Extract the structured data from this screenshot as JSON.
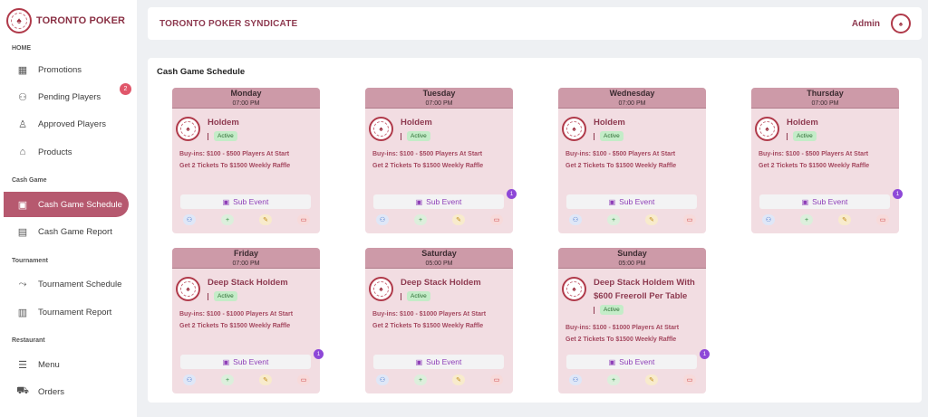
{
  "brand": {
    "title": "TORONTO POKER"
  },
  "sidebar": {
    "sections": [
      "HOME",
      "Cash Game",
      "Tournament",
      "Restaurant"
    ],
    "items": [
      {
        "label": "Promotions",
        "icon": "grid-icon"
      },
      {
        "label": "Pending Players",
        "icon": "users-icon",
        "badge": "2"
      },
      {
        "label": "Approved Players",
        "icon": "user-check-icon"
      },
      {
        "label": "Products",
        "icon": "store-icon"
      },
      {
        "label": "Cash Game Schedule",
        "icon": "calendar-icon",
        "active": true
      },
      {
        "label": "Cash Game Report",
        "icon": "report-icon"
      },
      {
        "label": "Tournament Schedule",
        "icon": "route-icon"
      },
      {
        "label": "Tournament Report",
        "icon": "clipboard-icon"
      },
      {
        "label": "Menu",
        "icon": "menu-icon"
      },
      {
        "label": "Orders",
        "icon": "cart-icon"
      }
    ]
  },
  "header": {
    "title": "TORONTO POKER SYNDICATE",
    "user": "Admin"
  },
  "main": {
    "title": "Cash Game Schedule"
  },
  "cards": [
    {
      "day": "Monday",
      "time": "07:00 PM",
      "game": "Holdem",
      "status": "Active",
      "desc1": "Buy-ins: $100 - $500 Players At Start",
      "desc2": "Get 2 Tickets To $1500 Weekly Raffle",
      "sub": "Sub Event",
      "count": ""
    },
    {
      "day": "Tuesday",
      "time": "07:00 PM",
      "game": "Holdem",
      "status": "Active",
      "desc1": "Buy-ins: $100 - $500 Players At Start",
      "desc2": "Get 2 Tickets To $1500 Weekly Raffle",
      "sub": "Sub Event",
      "count": "1"
    },
    {
      "day": "Wednesday",
      "time": "07:00 PM",
      "game": "Holdem",
      "status": "Active",
      "desc1": "Buy-ins: $100 - $500 Players At Start",
      "desc2": "Get 2 Tickets To $1500 Weekly Raffle",
      "sub": "Sub Event",
      "count": ""
    },
    {
      "day": "Thursday",
      "time": "07:00 PM",
      "game": "Holdem",
      "status": "Active",
      "desc1": "Buy-ins: $100 - $500 Players At Start",
      "desc2": "Get 2 Tickets To $1500 Weekly Raffle",
      "sub": "Sub Event",
      "count": "1"
    },
    {
      "day": "Friday",
      "time": "07:00 PM",
      "game": "Deep Stack Holdem",
      "status": "Active",
      "desc1": "Buy-ins: $100 - $1000 Players At Start",
      "desc2": "Get 2 Tickets To $1500 Weekly Raffle",
      "sub": "Sub Event",
      "count": "1"
    },
    {
      "day": "Saturday",
      "time": "05:00 PM",
      "game": "Deep Stack Holdem",
      "status": "Active",
      "desc1": "Buy-ins: $100 - $1000 Players At Start",
      "desc2": "Get 2 Tickets To $1500 Weekly Raffle",
      "sub": "Sub Event",
      "count": ""
    },
    {
      "day": "Sunday",
      "time": "05:00 PM",
      "game": "Deep Stack Holdem With $600 Freeroll Per Table",
      "status": "Active",
      "desc1": "Buy-ins: $100 - $1000 Players At Start",
      "desc2": "Get 2 Tickets To $1500 Weekly Raffle",
      "sub": "Sub Event",
      "count": "1"
    }
  ]
}
